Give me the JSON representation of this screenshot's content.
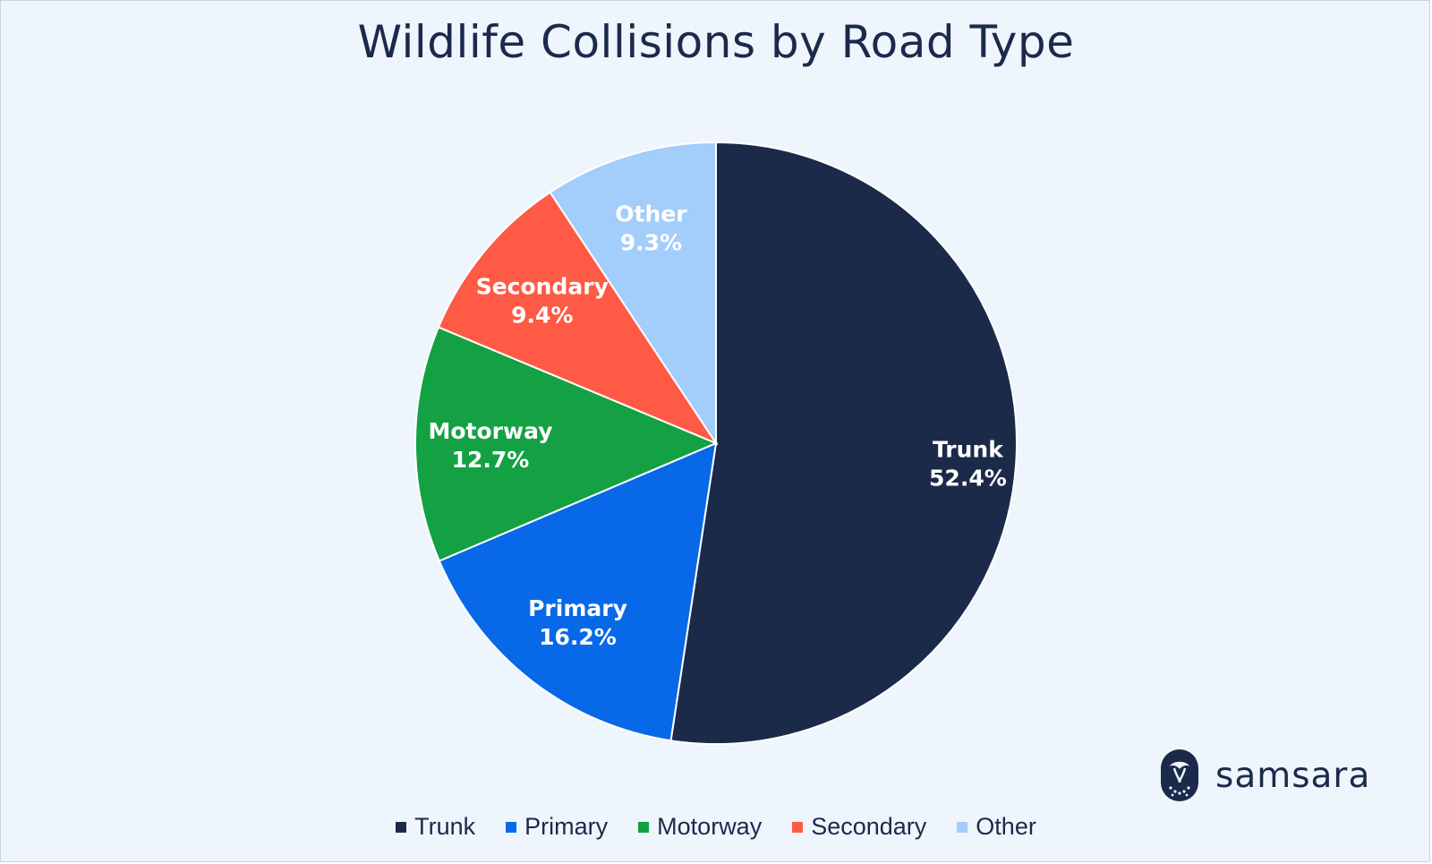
{
  "chart_data": {
    "type": "pie",
    "title": "Wildlife Collisions by Road Type",
    "categories": [
      "Trunk",
      "Primary",
      "Motorway",
      "Secondary",
      "Other"
    ],
    "values": [
      52.4,
      16.2,
      12.7,
      9.4,
      9.3
    ],
    "value_labels": [
      "52.4%",
      "16.2%",
      "12.7%",
      "9.4%",
      "9.3%"
    ],
    "colors": [
      "#1c2a4a",
      "#0769e8",
      "#13a143",
      "#ff5a45",
      "#a3cdfa"
    ],
    "legend_placement": "bottom",
    "start_angle": "12 o'clock",
    "direction": "clockwise"
  },
  "brand": {
    "name": "samsara",
    "icon": "owl-icon"
  }
}
